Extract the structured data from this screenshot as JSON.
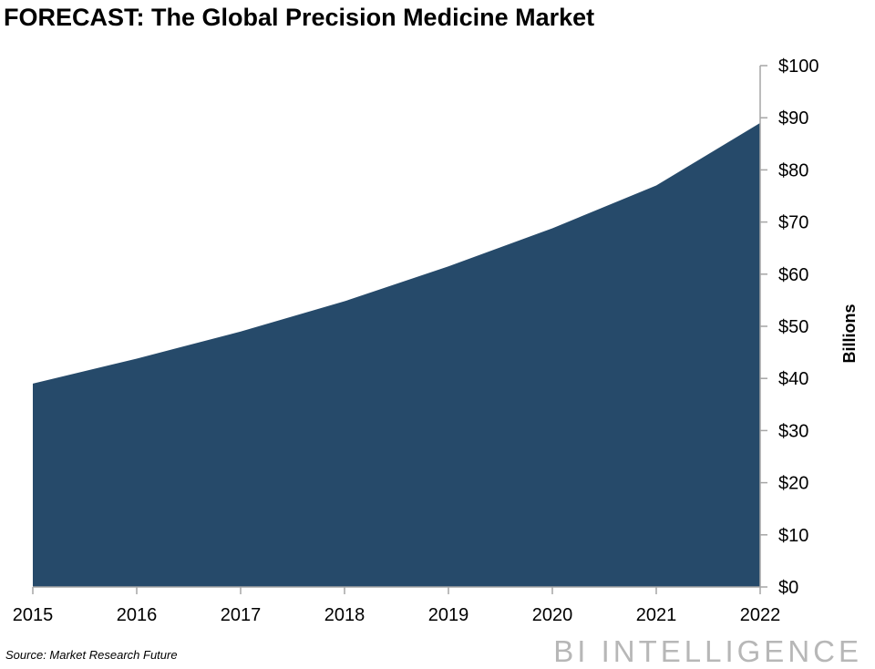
{
  "title": "FORECAST: The Global Precision Medicine Market",
  "source": "Source: Market Research Future",
  "logo_text": "BI INTELLIGENCE",
  "colors": {
    "area_fill": "#264a6a",
    "axis": "#a6a6a6",
    "logo": "#b7b7b7"
  },
  "chart_data": {
    "type": "area",
    "title": "FORECAST: The Global Precision Medicine Market",
    "x": [
      "2015",
      "2016",
      "2017",
      "2018",
      "2019",
      "2020",
      "2021",
      "2022"
    ],
    "series": [
      {
        "values": [
          39,
          43.8,
          49,
          54.8,
          61.5,
          68.8,
          77,
          89
        ]
      }
    ],
    "ylabel": "Billions",
    "ylim": [
      0,
      100
    ],
    "yticks": [
      0,
      10,
      20,
      30,
      40,
      50,
      60,
      70,
      80,
      90,
      100
    ],
    "ytick_labels": [
      "$0",
      "$10",
      "$20",
      "$30",
      "$40",
      "$50",
      "$60",
      "$70",
      "$80",
      "$90",
      "$100"
    ],
    "y_axis_position": "right",
    "grid": false,
    "legend": "none"
  }
}
